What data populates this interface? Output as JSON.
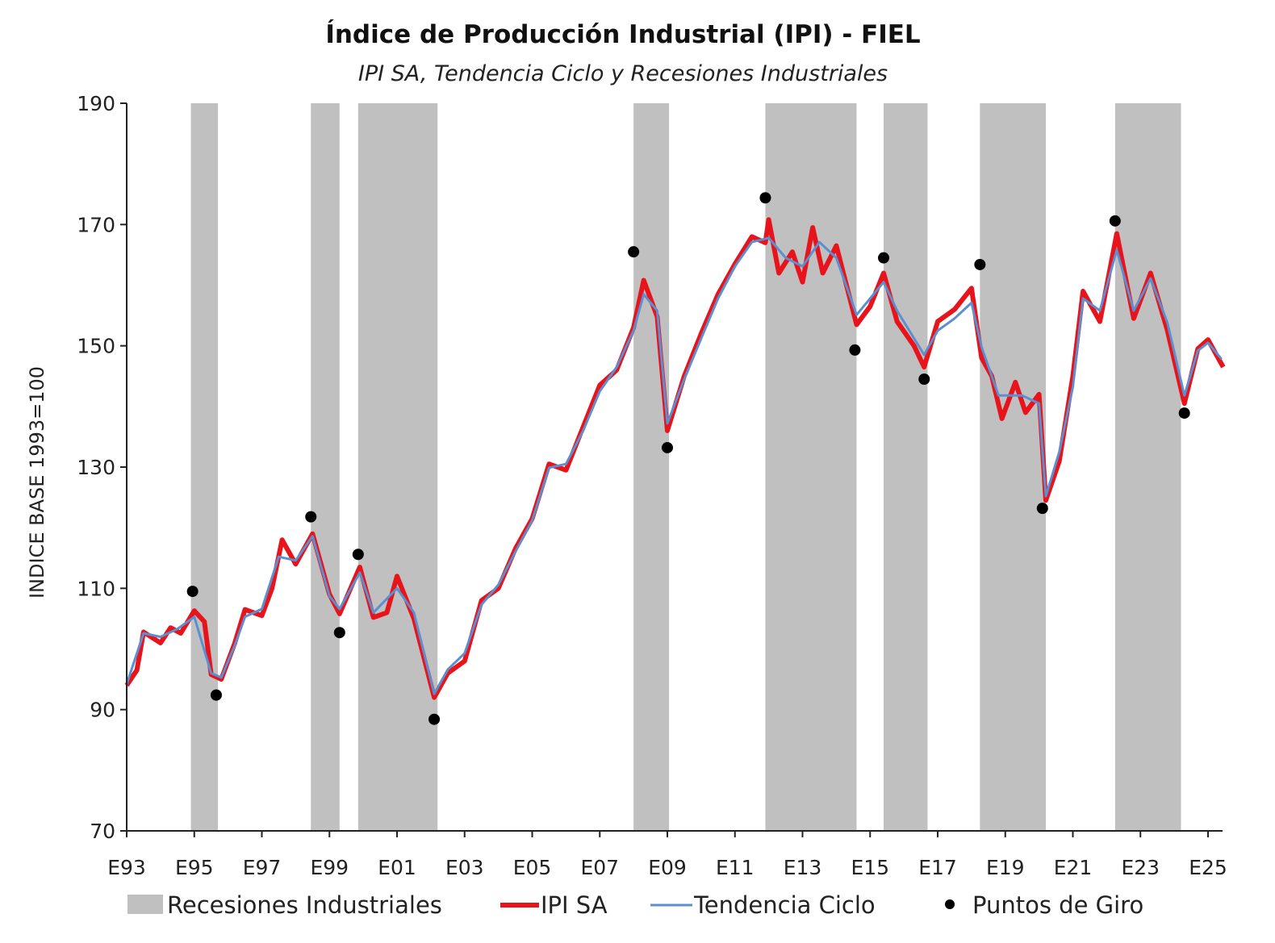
{
  "chart_data": {
    "type": "line",
    "title": "Índice de Producción Industrial (IPI) - FIEL",
    "subtitle": "IPI SA, Tendencia Ciclo y Recesiones Industriales",
    "ylabel": "INDICE BASE 1993=100",
    "xlabel": "",
    "ylim": [
      70,
      190
    ],
    "yticks": [
      70,
      90,
      110,
      130,
      150,
      170,
      190
    ],
    "xlim": [
      1993,
      2025.45
    ],
    "xticks": [
      {
        "year": 1993,
        "label": "E93"
      },
      {
        "year": 1995,
        "label": "E95"
      },
      {
        "year": 1997,
        "label": "E97"
      },
      {
        "year": 1999,
        "label": "E99"
      },
      {
        "year": 2001,
        "label": "E01"
      },
      {
        "year": 2003,
        "label": "E03"
      },
      {
        "year": 2005,
        "label": "E05"
      },
      {
        "year": 2007,
        "label": "E07"
      },
      {
        "year": 2009,
        "label": "E09"
      },
      {
        "year": 2011,
        "label": "E11"
      },
      {
        "year": 2013,
        "label": "E13"
      },
      {
        "year": 2015,
        "label": "E15"
      },
      {
        "year": 2017,
        "label": "E17"
      },
      {
        "year": 2019,
        "label": "E19"
      },
      {
        "year": 2021,
        "label": "E21"
      },
      {
        "year": 2023,
        "label": "E23"
      },
      {
        "year": 2025,
        "label": "E25"
      }
    ],
    "grid": false,
    "legend_placement": "bottom",
    "recessions": {
      "name": "Recesiones Industriales",
      "color": "#c0c0c0",
      "periods": [
        [
          1994.9,
          1995.7
        ],
        [
          1998.45,
          1999.3
        ],
        [
          1999.85,
          2002.2
        ],
        [
          2008.0,
          2009.05
        ],
        [
          2011.9,
          2014.6
        ],
        [
          2015.4,
          2016.7
        ],
        [
          2018.25,
          2020.2
        ],
        [
          2022.25,
          2024.2
        ]
      ]
    },
    "series": [
      {
        "name": "IPI SA",
        "color": "#e8141b",
        "points": [
          [
            1993.0,
            94.0
          ],
          [
            1993.3,
            96.5
          ],
          [
            1993.5,
            102.8
          ],
          [
            1994.0,
            101.0
          ],
          [
            1994.3,
            103.5
          ],
          [
            1994.6,
            102.6
          ],
          [
            1995.0,
            106.3
          ],
          [
            1995.3,
            104.5
          ],
          [
            1995.5,
            95.8
          ],
          [
            1995.8,
            95.0
          ],
          [
            1996.2,
            101.0
          ],
          [
            1996.5,
            106.5
          ],
          [
            1997.0,
            105.5
          ],
          [
            1997.3,
            110.0
          ],
          [
            1997.6,
            118.0
          ],
          [
            1998.0,
            114.0
          ],
          [
            1998.5,
            119.0
          ],
          [
            1999.0,
            109.0
          ],
          [
            1999.3,
            105.8
          ],
          [
            1999.9,
            113.5
          ],
          [
            2000.3,
            105.2
          ],
          [
            2000.7,
            106.0
          ],
          [
            2001.0,
            112.0
          ],
          [
            2001.5,
            105.0
          ],
          [
            2002.1,
            92.0
          ],
          [
            2002.5,
            96.0
          ],
          [
            2003.0,
            98.0
          ],
          [
            2003.5,
            108.0
          ],
          [
            2004.0,
            110.0
          ],
          [
            2004.5,
            116.5
          ],
          [
            2005.0,
            121.5
          ],
          [
            2005.5,
            130.5
          ],
          [
            2006.0,
            129.5
          ],
          [
            2006.5,
            136.5
          ],
          [
            2007.0,
            143.5
          ],
          [
            2007.5,
            146.0
          ],
          [
            2008.0,
            153.0
          ],
          [
            2008.3,
            160.8
          ],
          [
            2008.7,
            154.8
          ],
          [
            2009.0,
            136.0
          ],
          [
            2009.5,
            145.0
          ],
          [
            2010.0,
            152.0
          ],
          [
            2010.5,
            158.5
          ],
          [
            2011.0,
            163.5
          ],
          [
            2011.5,
            168.0
          ],
          [
            2011.9,
            167.0
          ],
          [
            2012.0,
            170.8
          ],
          [
            2012.3,
            162.0
          ],
          [
            2012.7,
            165.5
          ],
          [
            2013.0,
            160.5
          ],
          [
            2013.3,
            169.5
          ],
          [
            2013.6,
            162.0
          ],
          [
            2014.0,
            166.5
          ],
          [
            2014.6,
            153.5
          ],
          [
            2015.0,
            156.5
          ],
          [
            2015.4,
            162.0
          ],
          [
            2015.8,
            154.0
          ],
          [
            2016.3,
            150.0
          ],
          [
            2016.6,
            146.5
          ],
          [
            2017.0,
            154.0
          ],
          [
            2017.5,
            156.0
          ],
          [
            2018.0,
            159.5
          ],
          [
            2018.3,
            148.0
          ],
          [
            2018.6,
            145.0
          ],
          [
            2018.9,
            138.0
          ],
          [
            2019.3,
            144.0
          ],
          [
            2019.6,
            139.0
          ],
          [
            2020.0,
            142.0
          ],
          [
            2020.2,
            124.5
          ],
          [
            2020.6,
            131.0
          ],
          [
            2021.0,
            145.0
          ],
          [
            2021.3,
            159.0
          ],
          [
            2021.8,
            154.0
          ],
          [
            2022.3,
            168.5
          ],
          [
            2022.8,
            154.5
          ],
          [
            2023.3,
            162.0
          ],
          [
            2023.8,
            152.5
          ],
          [
            2024.3,
            140.5
          ],
          [
            2024.7,
            149.5
          ],
          [
            2025.0,
            151.0
          ],
          [
            2025.45,
            146.5
          ]
        ]
      },
      {
        "name": "Tendencia Ciclo",
        "color": "#5b8fd0",
        "points": [
          [
            1993.0,
            94.2
          ],
          [
            1993.5,
            102.6
          ],
          [
            1994.0,
            102.0
          ],
          [
            1994.5,
            103.3
          ],
          [
            1995.0,
            105.3
          ],
          [
            1995.5,
            96.0
          ],
          [
            1995.8,
            95.3
          ],
          [
            1996.2,
            100.6
          ],
          [
            1996.5,
            105.3
          ],
          [
            1997.0,
            106.6
          ],
          [
            1997.5,
            115.2
          ],
          [
            1998.0,
            114.6
          ],
          [
            1998.5,
            118.6
          ],
          [
            1999.0,
            108.7
          ],
          [
            1999.3,
            106.6
          ],
          [
            1999.9,
            112.6
          ],
          [
            2000.3,
            106.0
          ],
          [
            2001.0,
            110.0
          ],
          [
            2001.5,
            106.0
          ],
          [
            2002.1,
            92.6
          ],
          [
            2002.5,
            96.6
          ],
          [
            2003.0,
            99.3
          ],
          [
            2003.5,
            107.3
          ],
          [
            2004.0,
            110.6
          ],
          [
            2004.5,
            116.0
          ],
          [
            2005.0,
            121.2
          ],
          [
            2005.5,
            129.9
          ],
          [
            2006.0,
            130.5
          ],
          [
            2006.5,
            135.9
          ],
          [
            2007.0,
            142.5
          ],
          [
            2007.5,
            146.5
          ],
          [
            2008.0,
            152.5
          ],
          [
            2008.3,
            158.5
          ],
          [
            2008.7,
            155.8
          ],
          [
            2009.0,
            137.2
          ],
          [
            2009.5,
            144.5
          ],
          [
            2010.0,
            151.2
          ],
          [
            2010.5,
            157.8
          ],
          [
            2011.0,
            163.1
          ],
          [
            2011.5,
            167.1
          ],
          [
            2012.0,
            167.8
          ],
          [
            2012.5,
            164.5
          ],
          [
            2013.0,
            163.1
          ],
          [
            2013.5,
            167.1
          ],
          [
            2014.0,
            164.5
          ],
          [
            2014.6,
            155.1
          ],
          [
            2015.0,
            157.8
          ],
          [
            2015.4,
            160.5
          ],
          [
            2015.8,
            155.8
          ],
          [
            2016.6,
            148.5
          ],
          [
            2017.0,
            152.5
          ],
          [
            2017.5,
            154.5
          ],
          [
            2018.0,
            157.1
          ],
          [
            2018.3,
            149.8
          ],
          [
            2018.8,
            141.8
          ],
          [
            2019.5,
            141.8
          ],
          [
            2020.0,
            140.5
          ],
          [
            2020.2,
            125.2
          ],
          [
            2020.6,
            132.5
          ],
          [
            2021.0,
            143.2
          ],
          [
            2021.3,
            157.8
          ],
          [
            2021.8,
            155.8
          ],
          [
            2022.3,
            165.8
          ],
          [
            2022.8,
            155.8
          ],
          [
            2023.3,
            161.1
          ],
          [
            2023.8,
            153.8
          ],
          [
            2024.3,
            141.8
          ],
          [
            2024.7,
            149.2
          ],
          [
            2025.0,
            150.5
          ],
          [
            2025.4,
            147.8
          ]
        ]
      }
    ],
    "turning_points": {
      "name": "Puntos de Giro",
      "color": "#000000",
      "points": [
        [
          1994.95,
          109.5
        ],
        [
          1995.65,
          92.4
        ],
        [
          1998.45,
          121.8
        ],
        [
          1999.3,
          102.7
        ],
        [
          1999.85,
          115.6
        ],
        [
          2002.1,
          88.4
        ],
        [
          2008.0,
          165.5
        ],
        [
          2009.0,
          133.2
        ],
        [
          2011.9,
          174.4
        ],
        [
          2014.55,
          149.3
        ],
        [
          2015.4,
          164.5
        ],
        [
          2016.6,
          144.5
        ],
        [
          2018.25,
          163.4
        ],
        [
          2020.1,
          123.2
        ],
        [
          2022.25,
          170.6
        ],
        [
          2024.3,
          138.9
        ]
      ]
    }
  }
}
